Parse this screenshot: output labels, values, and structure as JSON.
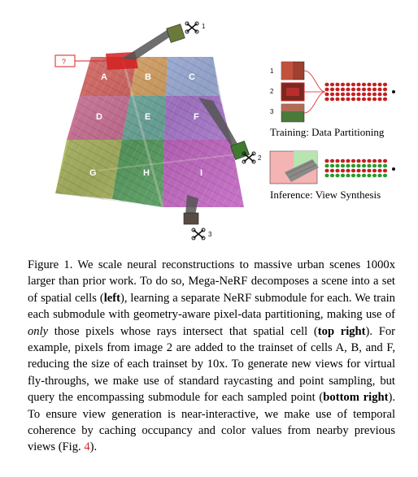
{
  "figure": {
    "cells": [
      "A",
      "B",
      "C",
      "D",
      "E",
      "F",
      "G",
      "H",
      "I"
    ],
    "question_mark": "?",
    "drone_labels": [
      "1",
      "2",
      "3"
    ],
    "partition_rows": [
      "1",
      "2",
      "3"
    ],
    "training_caption": "Training: Data Partitioning",
    "inference_caption": "Inference: View Synthesis",
    "cell_colors": [
      "#c8342f",
      "#d08a38",
      "#8aa0d8",
      "#c04a7a",
      "#4a9a8a",
      "#9a5ac8",
      "#9aa83a",
      "#2f8a3a",
      "#b03ab0"
    ]
  },
  "caption": {
    "label": "Figure 1.",
    "t1": " We scale neural reconstructions to massive urban scenes 1000x larger than prior work. To do so, Mega-NeRF decomposes a scene into a set of spatial cells (",
    "b1": "left",
    "t2": "), learning a separate NeRF submodule for each. We train each submodule with geometry-aware pixel-data partitioning, making use of ",
    "i1": "only",
    "t3": " those pixels whose rays intersect that spatial cell (",
    "b2": "top right",
    "t4": "). For example, pixels from image 2 are added to the trainset of cells A, B, and F, reducing the size of each trainset by 10x. To generate new views for virtual fly-throughs, we make use of standard raycasting and point sampling, but query the encompassing submodule for each sampled point (",
    "b3": "bottom right",
    "t5": "). To ensure view generation is near-interactive, we make use of temporal coherence by caching occupancy and color values from nearby previous views (Fig. ",
    "ref": "4",
    "t6": ")."
  }
}
